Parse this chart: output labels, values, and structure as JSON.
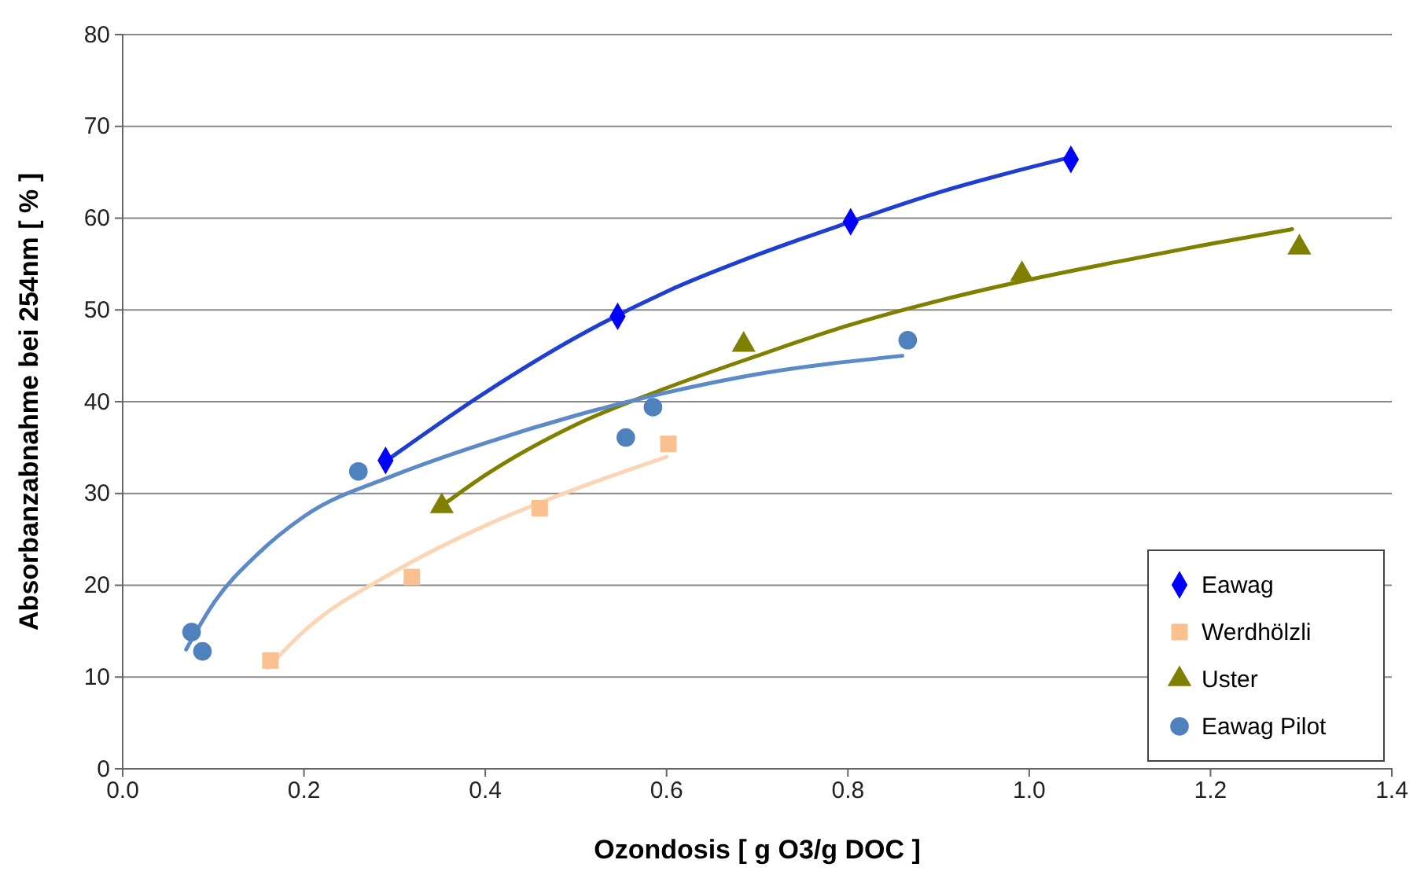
{
  "chart_data": {
    "type": "scatter",
    "xlabel": "Ozondosis [ g O3/g DOC ]",
    "ylabel": "Absorbanzabnahme bei 254nm [ % ]",
    "xlim": [
      0,
      1.4
    ],
    "xticks": [
      {
        "value": 0,
        "label": "0.0"
      },
      {
        "value": 0.2,
        "label": "0.2"
      },
      {
        "value": 0.4,
        "label": "0.4"
      },
      {
        "value": 0.6,
        "label": "0.6"
      },
      {
        "value": 0.8,
        "label": "0.8"
      },
      {
        "value": 1,
        "label": "1.0"
      },
      {
        "value": 1.2,
        "label": "1.2"
      },
      {
        "value": 1.4,
        "label": "1.4"
      }
    ],
    "ylim": [
      0,
      80
    ],
    "yticks": [
      0,
      10,
      20,
      30,
      40,
      50,
      60,
      70,
      80
    ],
    "grid": "y",
    "legend": "bottom right",
    "series": [
      {
        "type": "line",
        "color": "#1f3fd0",
        "marker": "none",
        "x": [
          0.29,
          0.4,
          0.5,
          0.6,
          0.7,
          0.8,
          0.9,
          1.04
        ],
        "values": [
          33.5,
          41,
          47,
          52,
          56,
          59.5,
          62.8,
          66.5
        ]
      },
      {
        "type": "line",
        "color": "#fcd5b4",
        "marker": "none",
        "x": [
          0.16,
          0.2,
          0.3,
          0.4,
          0.5,
          0.6
        ],
        "values": [
          11,
          15,
          21.5,
          26.5,
          30.5,
          34
        ]
      },
      {
        "type": "line",
        "color": "#808000",
        "marker": "none",
        "x": [
          0.35,
          0.4,
          0.5,
          0.6,
          0.7,
          0.8,
          0.9,
          1.0,
          1.1,
          1.2,
          1.29
        ],
        "values": [
          28.5,
          32,
          37.5,
          41.5,
          45,
          48.3,
          51,
          53.3,
          55.3,
          57.2,
          58.8
        ]
      },
      {
        "type": "line",
        "color": "#5b8ac6",
        "marker": "none",
        "x": [
          0.07,
          0.1,
          0.15,
          0.2,
          0.3,
          0.4,
          0.5,
          0.6,
          0.7,
          0.86
        ],
        "values": [
          13,
          18,
          23.5,
          27.5,
          32,
          35.5,
          38.5,
          41,
          43,
          45
        ]
      },
      {
        "name": "Eawag",
        "color": "#0000ff",
        "marker": "diamond",
        "x": [
          0.29,
          0.546,
          0.803,
          1.046
        ],
        "values": [
          33.6,
          49.3,
          59.6,
          66.4
        ]
      },
      {
        "name": "Werdhölzli",
        "color": "#fac090",
        "marker": "square",
        "x": [
          0.163,
          0.319,
          0.46,
          0.602
        ],
        "values": [
          11.8,
          20.9,
          28.4,
          35.4
        ]
      },
      {
        "name": "Uster",
        "color": "#808000",
        "marker": "triangle",
        "x": [
          0.352,
          0.685,
          0.992,
          1.298
        ],
        "values": [
          28.6,
          46.2,
          53.9,
          56.8
        ]
      },
      {
        "name": "Eawag Pilot",
        "color": "#4f81bd",
        "marker": "circle",
        "x": [
          0.076,
          0.088,
          0.26,
          0.555,
          0.585,
          0.866
        ],
        "values": [
          14.9,
          12.8,
          32.4,
          36.1,
          39.4,
          46.7
        ]
      }
    ]
  }
}
